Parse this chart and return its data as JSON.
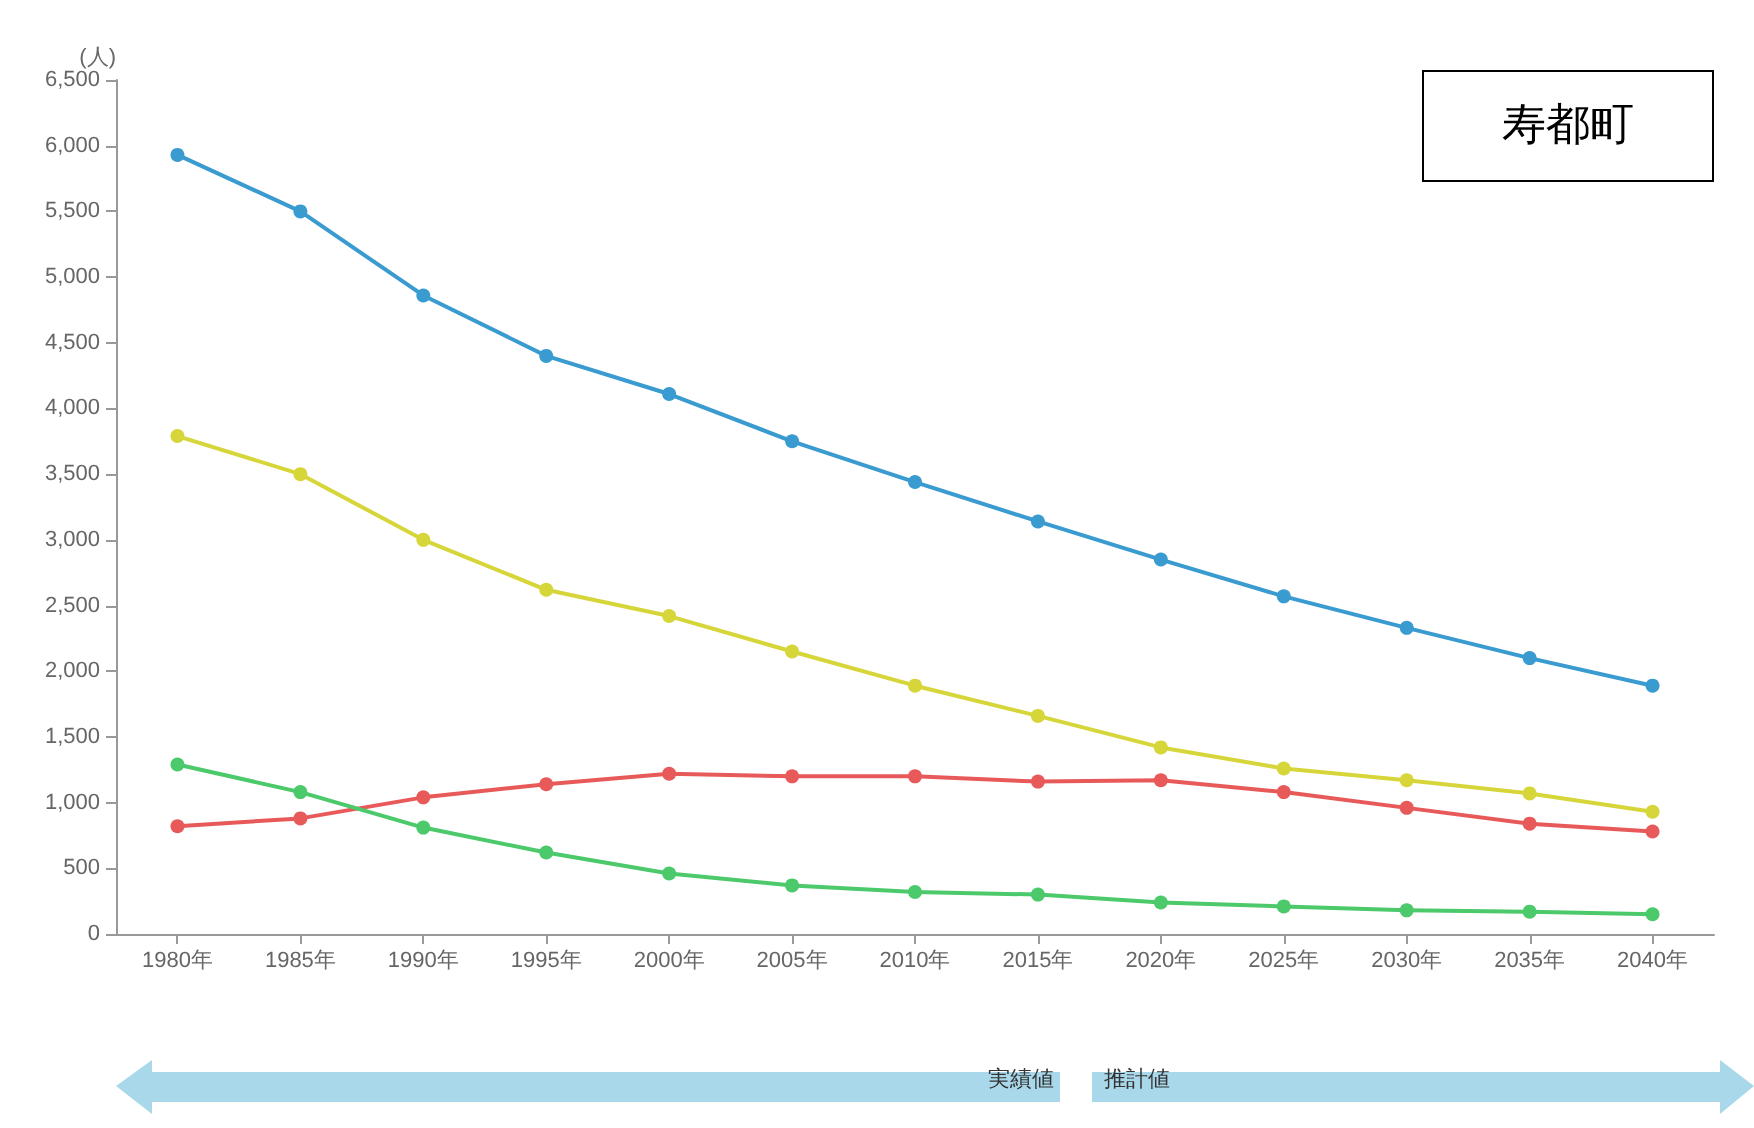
{
  "chart_data": {
    "type": "line",
    "title": "寿都町",
    "ylabel": "(人)",
    "categories": [
      "1980年",
      "1985年",
      "1990年",
      "1995年",
      "2000年",
      "2005年",
      "2010年",
      "2015年",
      "2020年",
      "2025年",
      "2030年",
      "2035年",
      "2040年"
    ],
    "series": [
      {
        "color": "#3a9bd0",
        "values": [
          5930,
          5500,
          4860,
          4400,
          4110,
          3750,
          3440,
          3140,
          2850,
          2570,
          2330,
          2100,
          1890
        ]
      },
      {
        "color": "#d6d63a",
        "values": [
          3790,
          3500,
          3000,
          2620,
          2420,
          2150,
          1890,
          1660,
          1420,
          1260,
          1170,
          1070,
          930
        ]
      },
      {
        "color": "#e85a5a",
        "values": [
          820,
          880,
          1040,
          1140,
          1220,
          1200,
          1200,
          1160,
          1170,
          1080,
          960,
          840,
          780
        ]
      },
      {
        "color": "#4cc96a",
        "values": [
          1290,
          1080,
          810,
          620,
          460,
          370,
          320,
          300,
          240,
          210,
          180,
          170,
          150
        ]
      }
    ],
    "ylim": [
      0,
      6500
    ],
    "yticks": [
      0,
      500,
      {
        "value": 1000,
        "label": "1,000"
      },
      {
        "value": 1500,
        "label": "1,500"
      },
      {
        "value": 2000,
        "label": "2,000"
      },
      {
        "value": 2500,
        "label": "2,500"
      },
      {
        "value": 3000,
        "label": "3,000"
      },
      {
        "value": 3500,
        "label": "3,500"
      },
      {
        "value": 4000,
        "label": "4,000"
      },
      {
        "value": 4500,
        "label": "4,500"
      },
      {
        "value": 5000,
        "label": "5,000"
      },
      {
        "value": 5500,
        "label": "5,500"
      },
      {
        "value": 6000,
        "label": "6,000"
      },
      {
        "value": 6500,
        "label": "6,500"
      }
    ],
    "grid": false,
    "marker": "circle",
    "line_style": "solid",
    "annotations": [
      "実績値",
      "推計値"
    ]
  }
}
